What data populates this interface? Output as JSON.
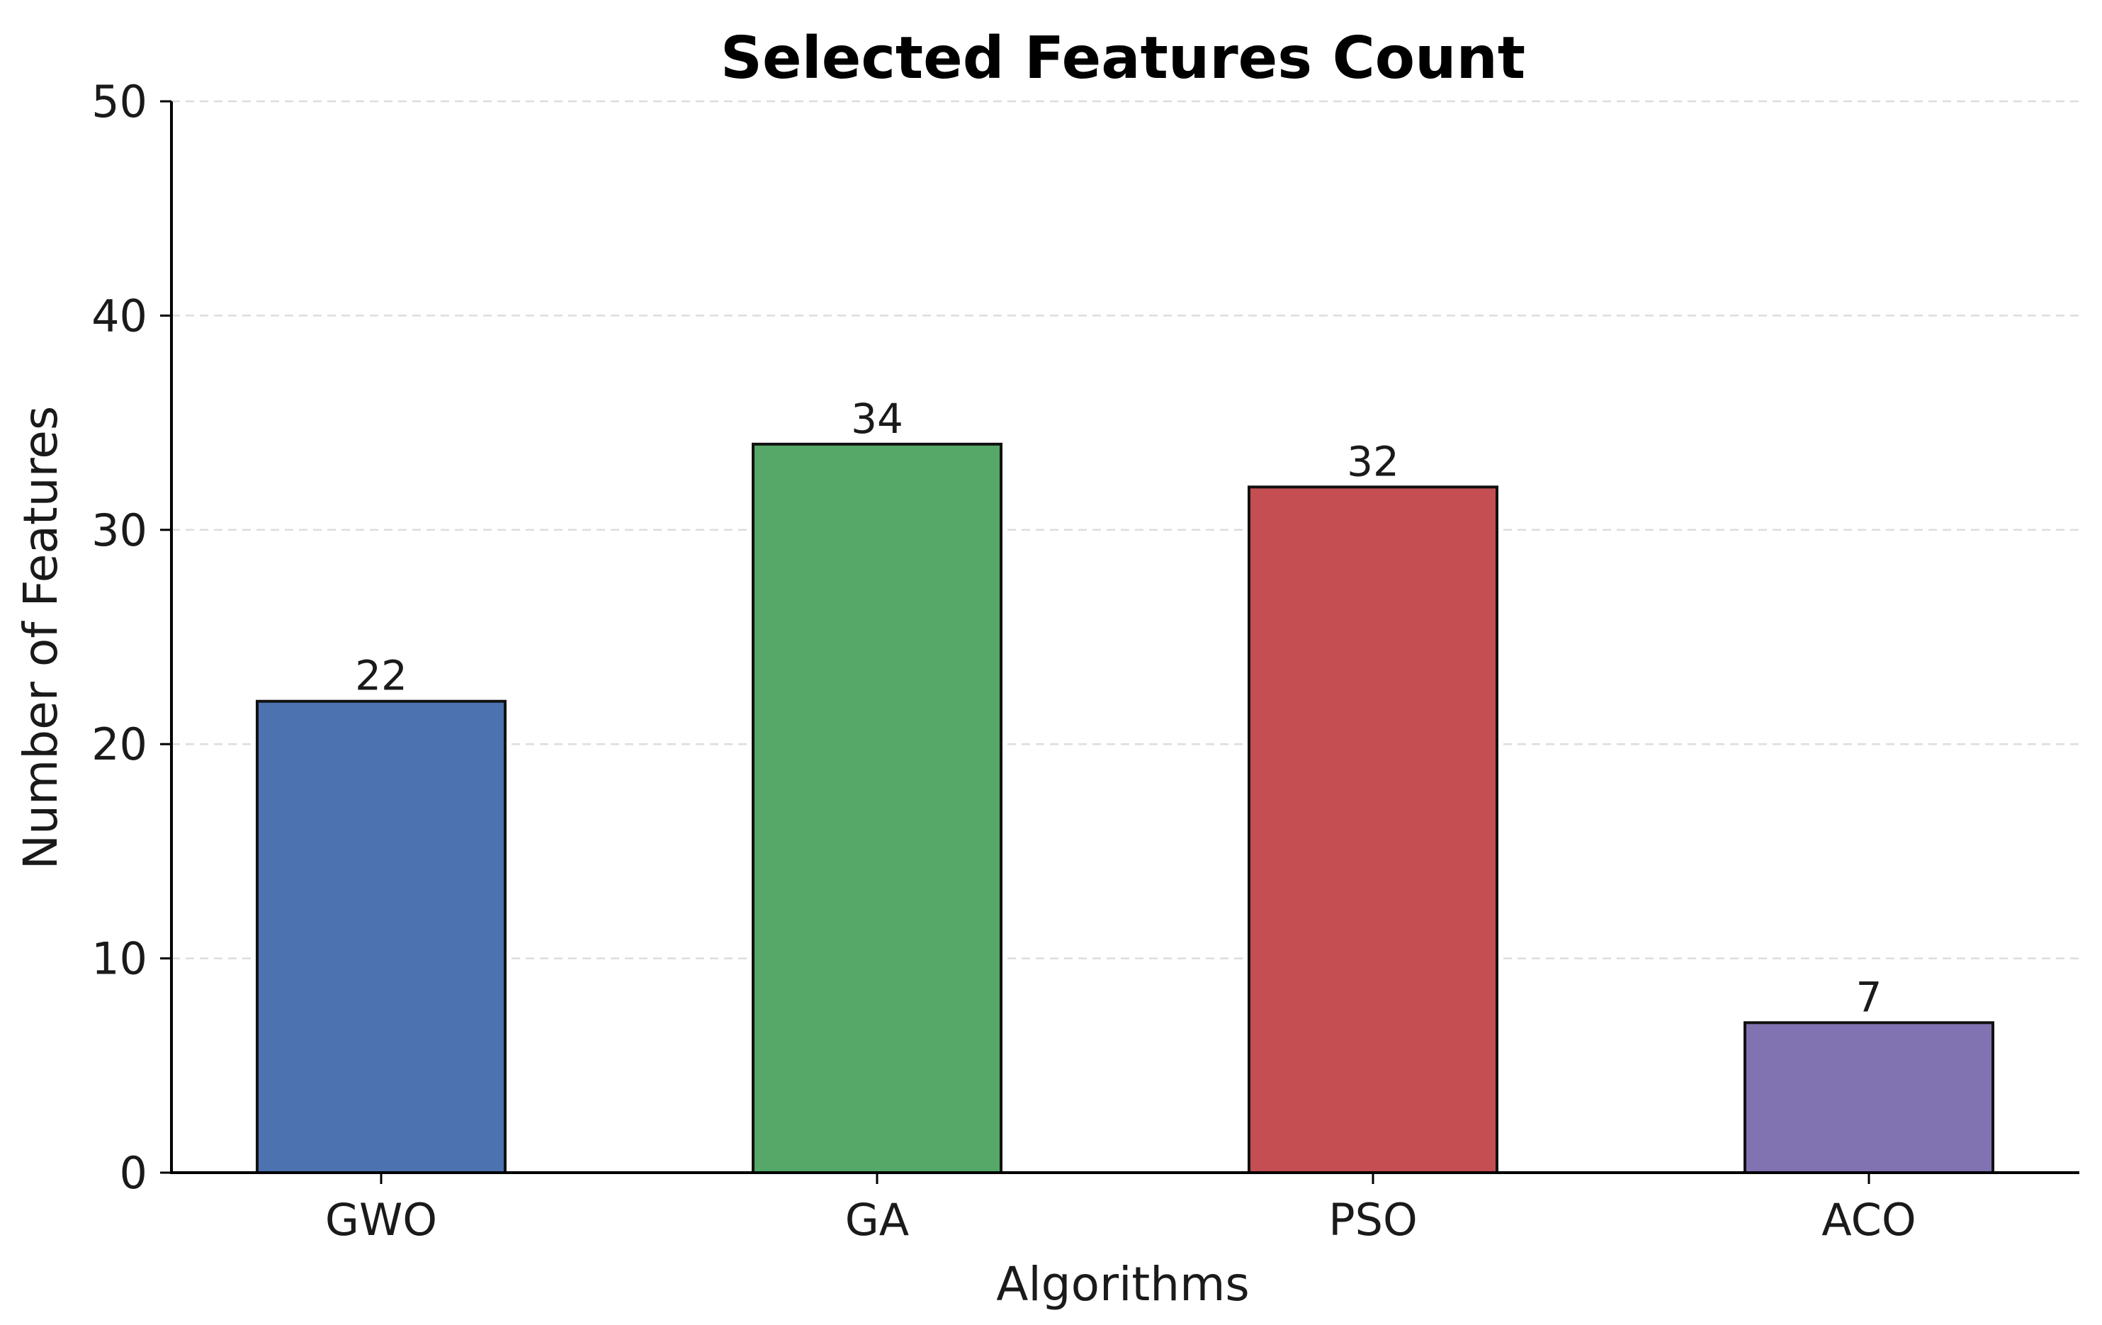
{
  "chart_data": {
    "type": "bar",
    "title": "Selected Features Count",
    "xlabel": "Algorithms",
    "ylabel": "Number of Features",
    "categories": [
      "GWO",
      "GA",
      "PSO",
      "ACO"
    ],
    "values": [
      22,
      34,
      32,
      7
    ],
    "value_labels": [
      "22",
      "34",
      "32",
      "7"
    ],
    "colors": [
      "#4c72b0",
      "#55a868",
      "#c44e52",
      "#8172b2"
    ],
    "ylim": [
      0,
      50
    ],
    "yticks": [
      0,
      10,
      20,
      30,
      40,
      50
    ],
    "ytick_labels": [
      "0",
      "10",
      "20",
      "30",
      "40",
      "50"
    ],
    "grid": "horizontal-dashed",
    "legend": "none"
  }
}
